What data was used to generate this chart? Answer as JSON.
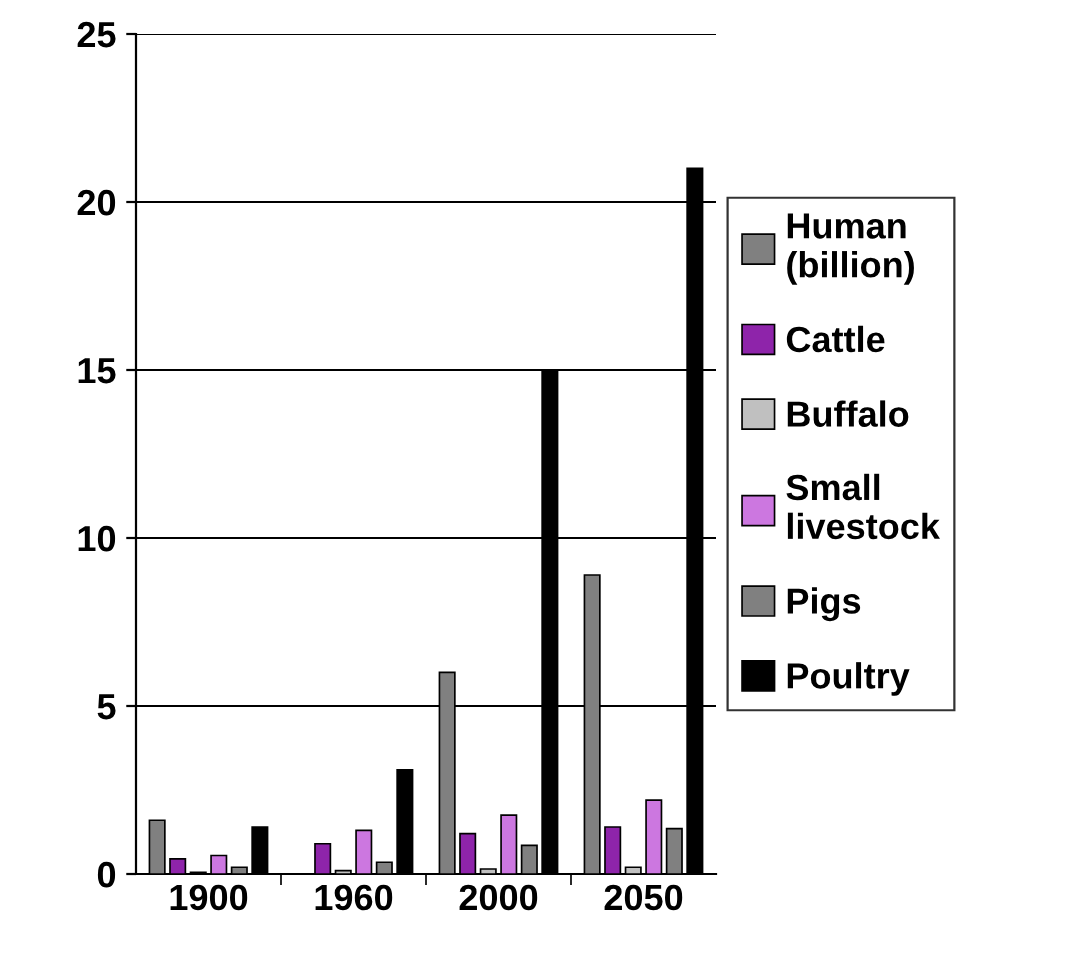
{
  "chart_data": {
    "type": "bar",
    "categories": [
      "1900",
      "1960",
      "2000",
      "2050"
    ],
    "series": [
      {
        "name": "Human (billion)",
        "color": "#808080",
        "values": [
          1.6,
          null,
          6.0,
          8.9
        ]
      },
      {
        "name": "Cattle",
        "color": "#8e24aa",
        "values": [
          0.45,
          0.9,
          1.2,
          1.4
        ]
      },
      {
        "name": "Buffalo",
        "color": "#c0c0c0",
        "values": [
          0.05,
          0.1,
          0.15,
          0.2
        ]
      },
      {
        "name": "Small livestock",
        "color": "#cc77e0",
        "values": [
          0.55,
          1.3,
          1.75,
          2.2
        ]
      },
      {
        "name": "Pigs",
        "color": "#808080",
        "values": [
          0.2,
          0.35,
          0.85,
          1.35
        ]
      },
      {
        "name": "Poultry",
        "color": "#000000",
        "values": [
          1.4,
          3.1,
          15,
          21
        ]
      }
    ],
    "ylim": [
      0,
      25
    ],
    "yticks": [
      0,
      5,
      10,
      15,
      20,
      25
    ],
    "grid": "y",
    "legend": "right"
  }
}
